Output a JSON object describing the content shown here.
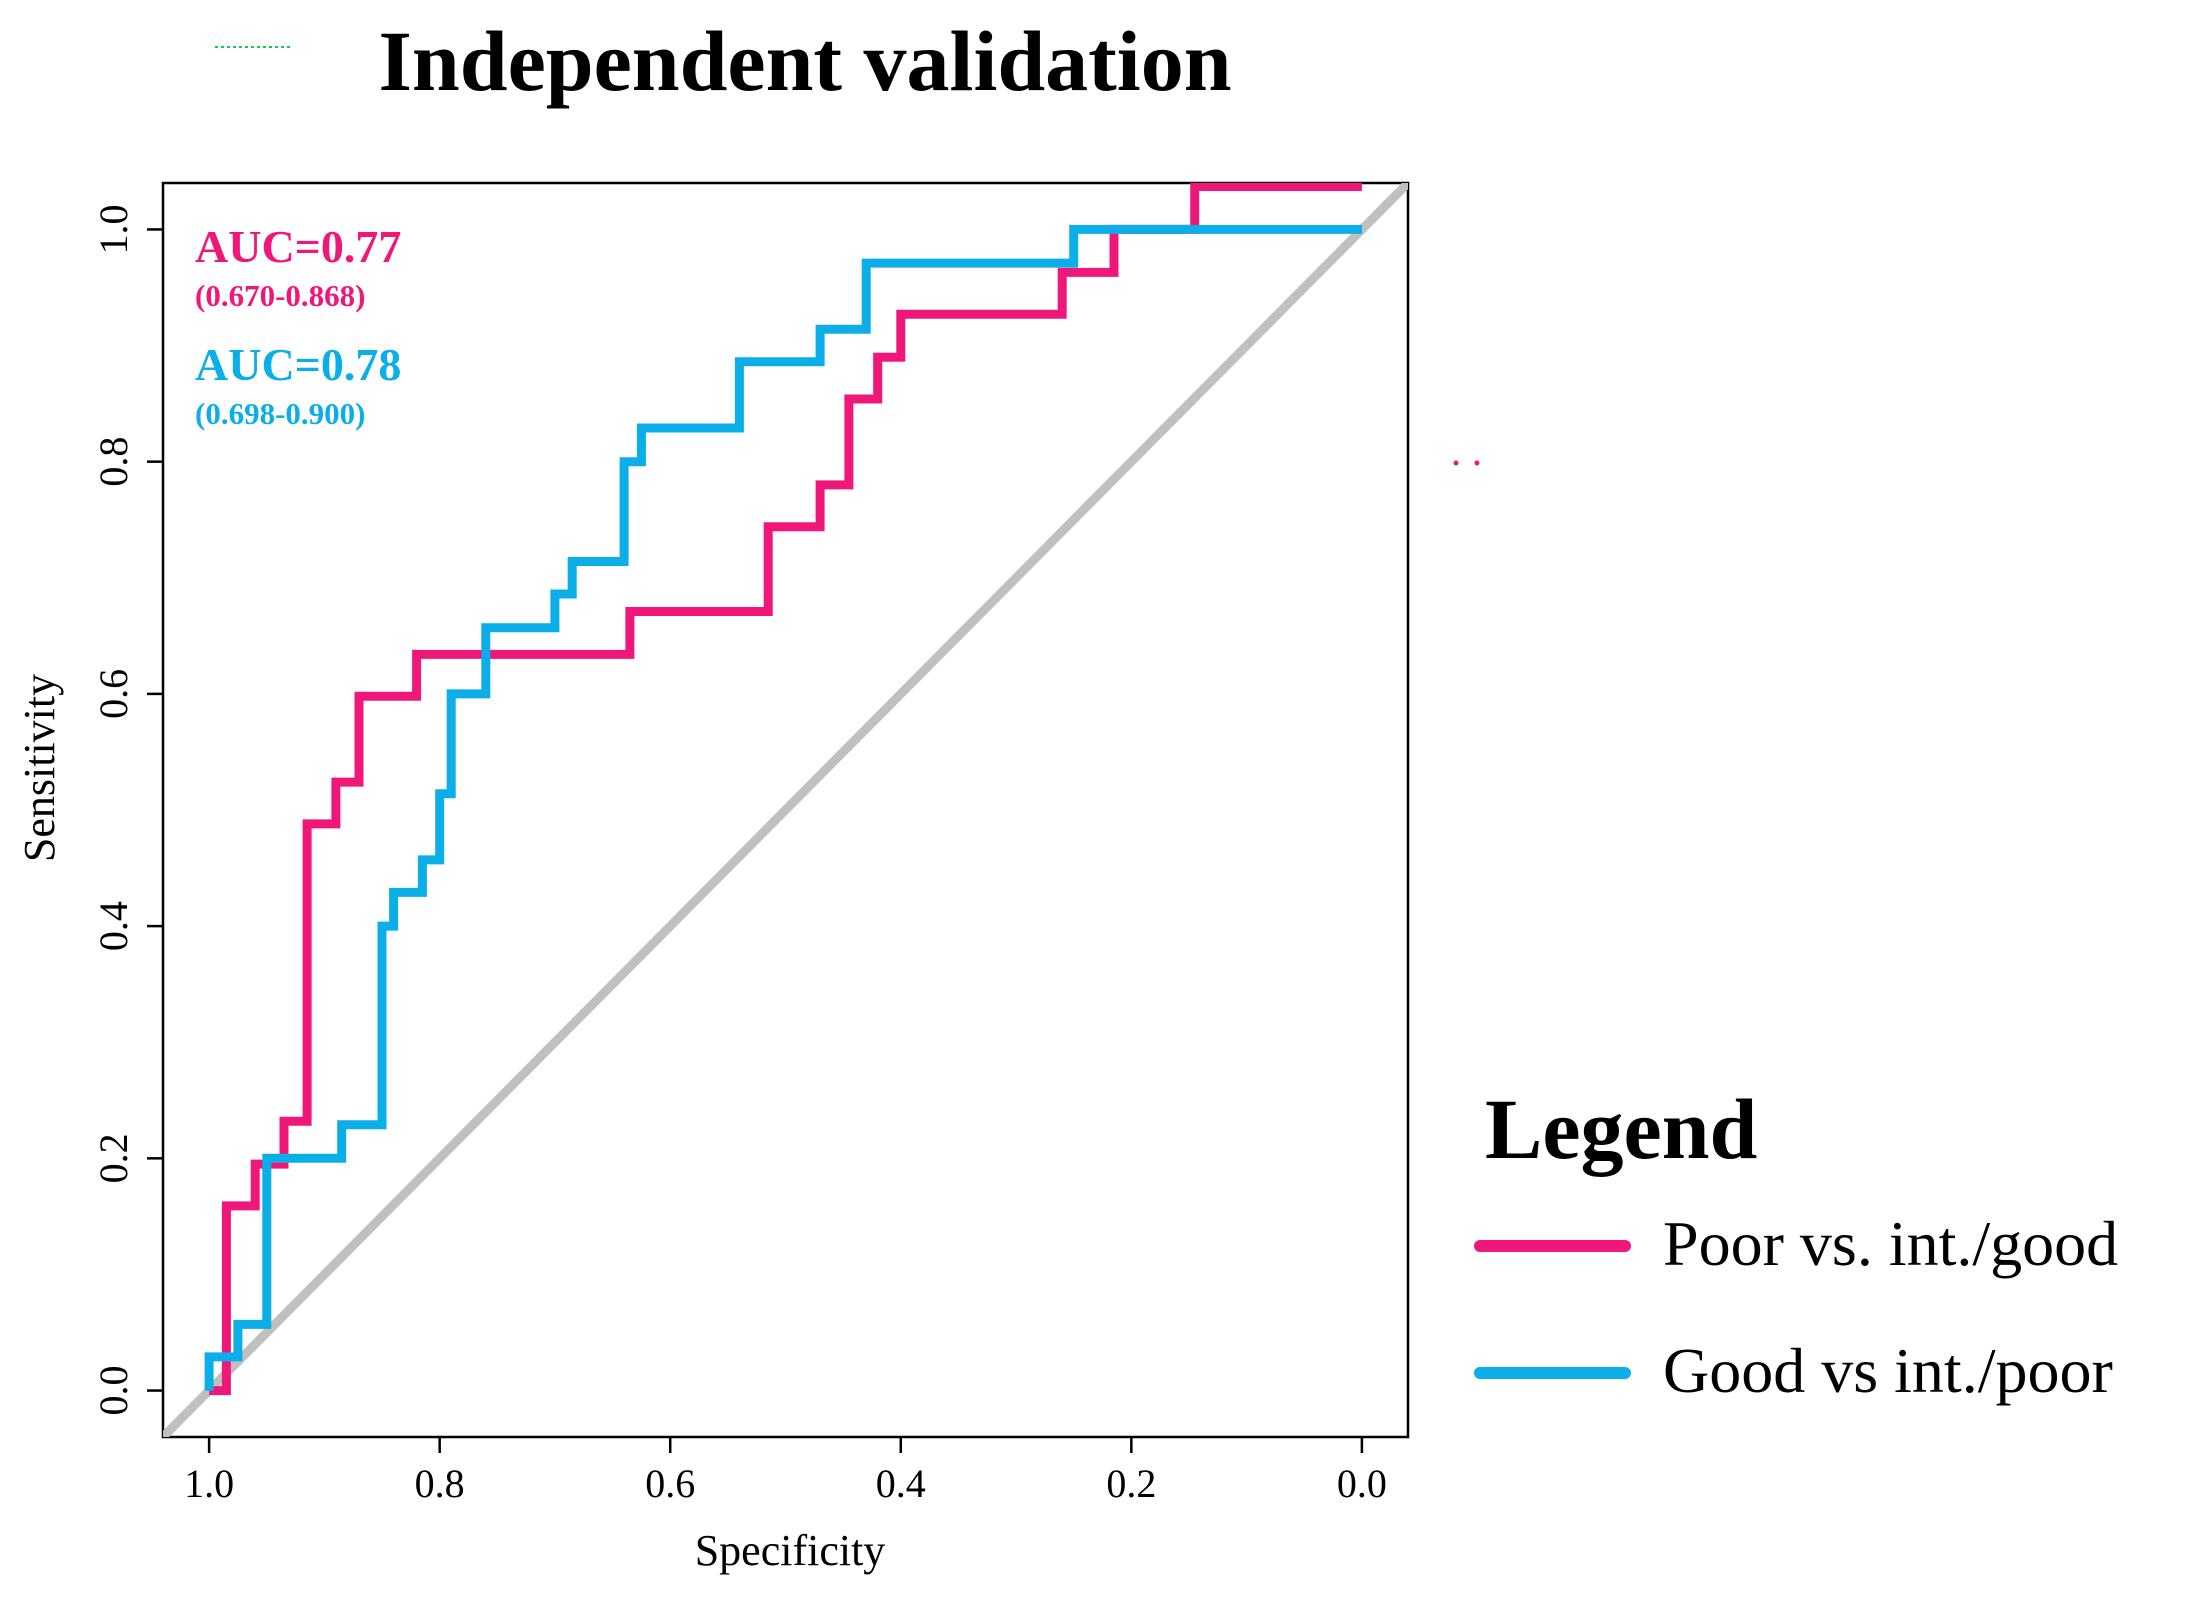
{
  "chart_data": {
    "type": "line",
    "title": "Independent validation",
    "xlabel": "Specificity",
    "ylabel": "Sensitivity",
    "xlim": [
      1.04,
      -0.04
    ],
    "ylim": [
      -0.04,
      1.04
    ],
    "x_ticks": [
      1.0,
      0.8,
      0.6,
      0.4,
      0.2,
      0.0
    ],
    "x_tick_labels": [
      "1.0",
      "0.8",
      "0.6",
      "0.4",
      "0.2",
      "0.0"
    ],
    "y_ticks": [
      0.0,
      0.2,
      0.4,
      0.6,
      0.8,
      1.0
    ],
    "y_tick_labels": [
      "0.0",
      "0.2",
      "0.4",
      "0.6",
      "0.8",
      "1.0"
    ],
    "reference_line": {
      "from": [
        1.04,
        -0.04
      ],
      "to": [
        -0.04,
        1.04
      ],
      "color": "#c0c0c0"
    },
    "auc_labels": [
      {
        "auc": "AUC=0.77",
        "ci": "(0.670-0.868)",
        "color": "#f0177a"
      },
      {
        "auc": "AUC=0.78",
        "ci": "(0.698-0.900)",
        "color": "#0baee6"
      }
    ],
    "legend": {
      "title": "Legend",
      "position": "right",
      "entries": [
        {
          "label": "Poor vs. int./good",
          "color": "#f0177a"
        },
        {
          "label": "Good vs int./poor",
          "color": "#0baee6"
        }
      ]
    },
    "series": [
      {
        "name": "Poor vs. int./good",
        "color": "#f0177a",
        "x": [
          1.0,
          0.985,
          0.985,
          0.96,
          0.96,
          0.935,
          0.935,
          0.915,
          0.915,
          0.89,
          0.89,
          0.87,
          0.87,
          0.82,
          0.82,
          0.635,
          0.635,
          0.515,
          0.515,
          0.47,
          0.47,
          0.445,
          0.445,
          0.42,
          0.42,
          0.4,
          0.4,
          0.26,
          0.26,
          0.215,
          0.215,
          0.145,
          0.145,
          0.0
        ],
        "y": [
          0.0,
          0.0,
          0.159,
          0.159,
          0.195,
          0.195,
          0.232,
          0.232,
          0.488,
          0.488,
          0.524,
          0.524,
          0.598,
          0.598,
          0.634,
          0.634,
          0.671,
          0.671,
          0.744,
          0.744,
          0.78,
          0.78,
          0.854,
          0.854,
          0.89,
          0.89,
          0.927,
          0.927,
          0.963,
          0.963,
          1.0,
          1.0,
          1.037,
          1.037
        ]
      },
      {
        "name": "Good vs int./poor",
        "color": "#0baee6",
        "x": [
          1.0,
          1.0,
          0.975,
          0.975,
          0.95,
          0.95,
          0.885,
          0.885,
          0.85,
          0.85,
          0.84,
          0.84,
          0.815,
          0.815,
          0.8,
          0.8,
          0.79,
          0.79,
          0.76,
          0.76,
          0.7,
          0.7,
          0.685,
          0.685,
          0.64,
          0.64,
          0.625,
          0.625,
          0.54,
          0.54,
          0.47,
          0.47,
          0.43,
          0.43,
          0.25,
          0.25,
          0.0
        ],
        "y": [
          0.0,
          0.029,
          0.029,
          0.057,
          0.057,
          0.2,
          0.2,
          0.229,
          0.229,
          0.4,
          0.4,
          0.429,
          0.429,
          0.457,
          0.457,
          0.514,
          0.514,
          0.6,
          0.6,
          0.657,
          0.657,
          0.686,
          0.686,
          0.714,
          0.714,
          0.8,
          0.8,
          0.829,
          0.829,
          0.886,
          0.886,
          0.914,
          0.914,
          0.971,
          0.971,
          1.0,
          1.0
        ]
      }
    ]
  },
  "colors": {
    "poor_series": "#f0177a",
    "good_series": "#0baee6",
    "diagonal": "#c0c0c0",
    "axis": "#000000"
  }
}
